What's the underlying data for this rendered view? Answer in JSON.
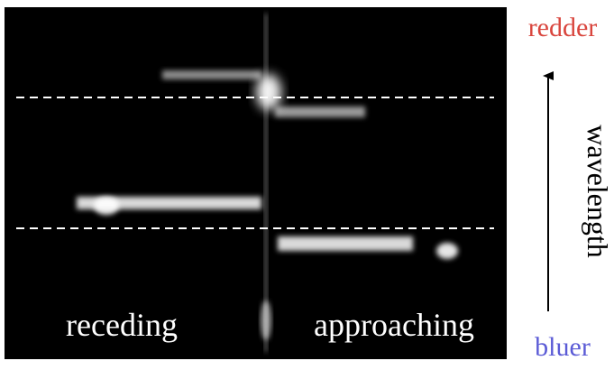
{
  "labels": {
    "top": "redder",
    "bottom": "bluer",
    "axis": "wavelength",
    "left": "receding",
    "right": "approaching"
  }
}
